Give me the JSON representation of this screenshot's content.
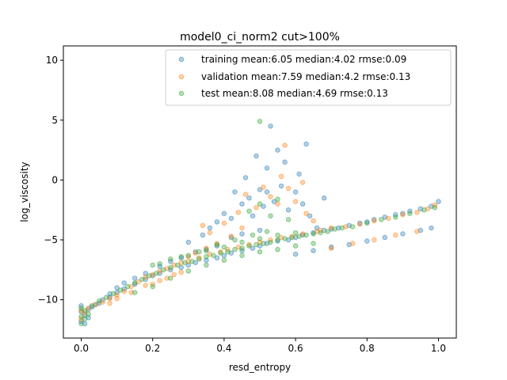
{
  "chart_data": {
    "type": "scatter",
    "title": "model0_ci_norm2 cut>100%",
    "xlabel": "resd_entropy",
    "ylabel": "log_viscosity",
    "xlim": [
      -0.05,
      1.05
    ],
    "ylim": [
      -13.2,
      11.2
    ],
    "xticks": [
      0.0,
      0.2,
      0.4,
      0.6,
      0.8,
      1.0
    ],
    "xtick_labels": [
      "0.0",
      "0.2",
      "0.4",
      "0.6",
      "0.8",
      "1.0"
    ],
    "yticks": [
      -10,
      -5,
      0,
      5,
      10
    ],
    "ytick_labels": [
      "−10",
      "−5",
      "0",
      "5",
      "10"
    ],
    "grid": false,
    "legend_position": "top-right",
    "series": [
      {
        "name": "training mean:6.05 median:4.02 rmse:0.09",
        "color": "#1f77b4",
        "points": [
          [
            0.0,
            -11.8
          ],
          [
            0.0,
            -11.0
          ],
          [
            0.0,
            -10.5
          ],
          [
            0.01,
            -11.3
          ],
          [
            0.02,
            -10.8
          ],
          [
            0.03,
            -10.6
          ],
          [
            0.05,
            -10.3
          ],
          [
            0.08,
            -9.8
          ],
          [
            0.1,
            -9.4
          ],
          [
            0.12,
            -9.1
          ],
          [
            0.15,
            -8.7
          ],
          [
            0.18,
            -8.3
          ],
          [
            0.2,
            -8.0
          ],
          [
            0.22,
            -7.8
          ],
          [
            0.25,
            -7.5
          ],
          [
            0.28,
            -7.3
          ],
          [
            0.3,
            -7.1
          ],
          [
            0.32,
            -6.9
          ],
          [
            0.35,
            -6.7
          ],
          [
            0.38,
            -6.5
          ],
          [
            0.4,
            -6.3
          ],
          [
            0.42,
            -6.1
          ],
          [
            0.45,
            -5.9
          ],
          [
            0.48,
            -5.7
          ],
          [
            0.5,
            -5.5
          ],
          [
            0.52,
            -5.3
          ],
          [
            0.55,
            -5.1
          ],
          [
            0.58,
            -5.0
          ],
          [
            0.6,
            -4.8
          ],
          [
            0.62,
            -4.6
          ],
          [
            0.65,
            -4.4
          ],
          [
            0.68,
            -4.2
          ],
          [
            0.7,
            -4.1
          ],
          [
            0.72,
            -4.0
          ],
          [
            0.75,
            -3.8
          ],
          [
            0.78,
            -3.6
          ],
          [
            0.8,
            -3.5
          ],
          [
            0.82,
            -3.3
          ],
          [
            0.85,
            -3.1
          ],
          [
            0.88,
            -2.9
          ],
          [
            0.9,
            -2.8
          ],
          [
            0.92,
            -2.6
          ],
          [
            0.95,
            -2.4
          ],
          [
            0.98,
            -2.2
          ],
          [
            1.0,
            -1.8
          ],
          [
            0.6,
            -6.2
          ],
          [
            0.65,
            -5.9
          ],
          [
            0.7,
            -5.6
          ],
          [
            0.75,
            -5.4
          ],
          [
            0.8,
            -5.1
          ],
          [
            0.85,
            -4.8
          ],
          [
            0.9,
            -4.5
          ],
          [
            0.95,
            -4.2
          ],
          [
            0.98,
            -4.0
          ],
          [
            0.38,
            -3.5
          ],
          [
            0.4,
            -2.8
          ],
          [
            0.42,
            -3.2
          ],
          [
            0.45,
            -2.0
          ],
          [
            0.47,
            -1.5
          ],
          [
            0.48,
            -3.0
          ],
          [
            0.5,
            -0.8
          ],
          [
            0.51,
            -2.2
          ],
          [
            0.52,
            -1.0
          ],
          [
            0.53,
            4.5
          ],
          [
            0.54,
            -1.8
          ],
          [
            0.55,
            2.5
          ],
          [
            0.56,
            -0.5
          ],
          [
            0.57,
            1.5
          ],
          [
            0.58,
            -2.5
          ],
          [
            0.6,
            -1.0
          ],
          [
            0.61,
            0.5
          ],
          [
            0.62,
            -2.0
          ],
          [
            0.63,
            3.0
          ],
          [
            0.64,
            -3.0
          ],
          [
            0.66,
            -4.0
          ],
          [
            0.68,
            -1.5
          ],
          [
            0.5,
            -4.2
          ],
          [
            0.45,
            -4.5
          ],
          [
            0.42,
            -4.8
          ],
          [
            0.38,
            -5.5
          ],
          [
            0.35,
            -5.8
          ],
          [
            0.32,
            -6.0
          ],
          [
            0.28,
            -6.5
          ],
          [
            0.25,
            -6.8
          ],
          [
            0.22,
            -7.2
          ],
          [
            0.18,
            -7.8
          ],
          [
            0.15,
            -8.2
          ],
          [
            0.12,
            -8.6
          ],
          [
            0.1,
            -9.0
          ],
          [
            0.08,
            -9.5
          ],
          [
            0.06,
            -10.0
          ],
          [
            0.04,
            -10.4
          ],
          [
            0.02,
            -11.5
          ],
          [
            0.01,
            -12.0
          ],
          [
            0.49,
            2.0
          ],
          [
            0.52,
            1.0
          ],
          [
            0.43,
            -1.0
          ],
          [
            0.46,
            0.2
          ],
          [
            0.36,
            -4.0
          ],
          [
            0.34,
            -4.6
          ],
          [
            0.3,
            -5.2
          ]
        ]
      },
      {
        "name": "validation mean:7.59 median:4.2 rmse:0.13",
        "color": "#ff7f0e",
        "points": [
          [
            0.0,
            -11.6
          ],
          [
            0.0,
            -10.9
          ],
          [
            0.01,
            -11.1
          ],
          [
            0.02,
            -10.7
          ],
          [
            0.04,
            -10.4
          ],
          [
            0.06,
            -10.2
          ],
          [
            0.08,
            -9.9
          ],
          [
            0.1,
            -9.6
          ],
          [
            0.12,
            -9.3
          ],
          [
            0.14,
            -8.9
          ],
          [
            0.16,
            -8.5
          ],
          [
            0.18,
            -8.1
          ],
          [
            0.2,
            -7.9
          ],
          [
            0.22,
            -7.6
          ],
          [
            0.24,
            -7.4
          ],
          [
            0.26,
            -7.1
          ],
          [
            0.28,
            -6.9
          ],
          [
            0.3,
            -6.8
          ],
          [
            0.33,
            -6.5
          ],
          [
            0.36,
            -6.2
          ],
          [
            0.39,
            -6.0
          ],
          [
            0.41,
            -5.8
          ],
          [
            0.44,
            -5.6
          ],
          [
            0.47,
            -5.4
          ],
          [
            0.5,
            -5.2
          ],
          [
            0.53,
            -5.0
          ],
          [
            0.56,
            -4.8
          ],
          [
            0.59,
            -4.7
          ],
          [
            0.62,
            -4.5
          ],
          [
            0.66,
            -4.3
          ],
          [
            0.7,
            -4.0
          ],
          [
            0.74,
            -3.9
          ],
          [
            0.78,
            -3.7
          ],
          [
            0.82,
            -3.4
          ],
          [
            0.86,
            -3.2
          ],
          [
            0.9,
            -2.9
          ],
          [
            0.94,
            -2.7
          ],
          [
            0.97,
            -2.4
          ],
          [
            0.99,
            -2.1
          ],
          [
            0.7,
            -5.7
          ],
          [
            0.76,
            -5.3
          ],
          [
            0.82,
            -5.0
          ],
          [
            0.88,
            -4.6
          ],
          [
            0.94,
            -4.3
          ],
          [
            0.18,
            -8.8
          ],
          [
            0.2,
            -8.7
          ],
          [
            0.22,
            -8.4
          ],
          [
            0.24,
            -8.2
          ],
          [
            0.26,
            -7.9
          ],
          [
            0.28,
            -7.7
          ],
          [
            0.1,
            -9.9
          ],
          [
            0.08,
            -10.3
          ],
          [
            0.14,
            -9.4
          ],
          [
            0.4,
            -3.6
          ],
          [
            0.44,
            -2.7
          ],
          [
            0.46,
            -1.2
          ],
          [
            0.49,
            -2.3
          ],
          [
            0.51,
            -0.6
          ],
          [
            0.53,
            -1.4
          ],
          [
            0.55,
            -2.0
          ],
          [
            0.57,
            2.9
          ],
          [
            0.58,
            -0.7
          ],
          [
            0.6,
            -1.8
          ],
          [
            0.62,
            -0.2
          ],
          [
            0.63,
            -2.8
          ],
          [
            0.65,
            -3.4
          ],
          [
            0.67,
            -4.2
          ],
          [
            0.56,
            0.3
          ],
          [
            0.45,
            -4.0
          ],
          [
            0.42,
            -4.7
          ],
          [
            0.38,
            -5.3
          ],
          [
            0.35,
            -5.7
          ],
          [
            0.32,
            -6.1
          ],
          [
            0.3,
            -6.4
          ],
          [
            0.34,
            -3.8
          ],
          [
            0.36,
            -4.4
          ]
        ]
      },
      {
        "name": "test mean:8.08 median:4.69 rmse:0.13",
        "color": "#2ca02c",
        "points": [
          [
            0.0,
            -12.0
          ],
          [
            0.0,
            -11.4
          ],
          [
            0.0,
            -10.7
          ],
          [
            0.01,
            -11.6
          ],
          [
            0.01,
            -10.9
          ],
          [
            0.02,
            -11.2
          ],
          [
            0.03,
            -10.5
          ],
          [
            0.05,
            -10.1
          ],
          [
            0.07,
            -9.8
          ],
          [
            0.09,
            -9.5
          ],
          [
            0.11,
            -9.2
          ],
          [
            0.13,
            -8.9
          ],
          [
            0.15,
            -8.6
          ],
          [
            0.17,
            -8.3
          ],
          [
            0.19,
            -8.0
          ],
          [
            0.21,
            -7.8
          ],
          [
            0.23,
            -7.5
          ],
          [
            0.25,
            -7.3
          ],
          [
            0.27,
            -7.1
          ],
          [
            0.29,
            -6.9
          ],
          [
            0.31,
            -6.8
          ],
          [
            0.33,
            -6.6
          ],
          [
            0.35,
            -6.4
          ],
          [
            0.37,
            -6.3
          ],
          [
            0.39,
            -6.1
          ],
          [
            0.41,
            -6.0
          ],
          [
            0.43,
            -5.8
          ],
          [
            0.45,
            -5.7
          ],
          [
            0.47,
            -5.5
          ],
          [
            0.49,
            -5.4
          ],
          [
            0.51,
            -5.3
          ],
          [
            0.53,
            -5.2
          ],
          [
            0.55,
            -5.0
          ],
          [
            0.57,
            -4.9
          ],
          [
            0.59,
            -4.8
          ],
          [
            0.61,
            -4.7
          ],
          [
            0.63,
            -4.6
          ],
          [
            0.65,
            -4.5
          ],
          [
            0.67,
            -4.4
          ],
          [
            0.69,
            -4.3
          ],
          [
            0.71,
            -4.1
          ],
          [
            0.73,
            -4.0
          ],
          [
            0.76,
            -3.9
          ],
          [
            0.8,
            -3.6
          ],
          [
            0.84,
            -3.3
          ],
          [
            0.88,
            -3.1
          ],
          [
            0.92,
            -2.8
          ],
          [
            0.96,
            -2.5
          ],
          [
            0.99,
            -2.3
          ],
          [
            0.5,
            4.9
          ],
          [
            0.47,
            -2.6
          ],
          [
            0.5,
            -2.0
          ],
          [
            0.53,
            -3.0
          ],
          [
            0.55,
            -1.6
          ],
          [
            0.58,
            -3.3
          ],
          [
            0.15,
            -9.4
          ],
          [
            0.2,
            -8.9
          ],
          [
            0.25,
            -8.2
          ],
          [
            0.3,
            -7.6
          ],
          [
            0.35,
            -7.1
          ],
          [
            0.4,
            -6.7
          ],
          [
            0.45,
            -6.3
          ],
          [
            0.5,
            -6.0
          ],
          [
            0.55,
            -5.8
          ],
          [
            0.6,
            -5.5
          ],
          [
            0.65,
            -5.3
          ],
          [
            0.3,
            -6.3
          ],
          [
            0.35,
            -5.9
          ],
          [
            0.4,
            -5.6
          ],
          [
            0.45,
            -5.2
          ],
          [
            0.5,
            -4.9
          ],
          [
            0.55,
            -4.6
          ],
          [
            0.6,
            -4.4
          ],
          [
            0.25,
            -6.6
          ],
          [
            0.2,
            -7.1
          ],
          [
            0.22,
            -7.0
          ],
          [
            0.28,
            -6.4
          ],
          [
            0.33,
            -6.0
          ],
          [
            0.38,
            -5.4
          ],
          [
            0.43,
            -5.0
          ],
          [
            0.48,
            -4.6
          ],
          [
            0.52,
            -4.3
          ]
        ]
      }
    ]
  }
}
